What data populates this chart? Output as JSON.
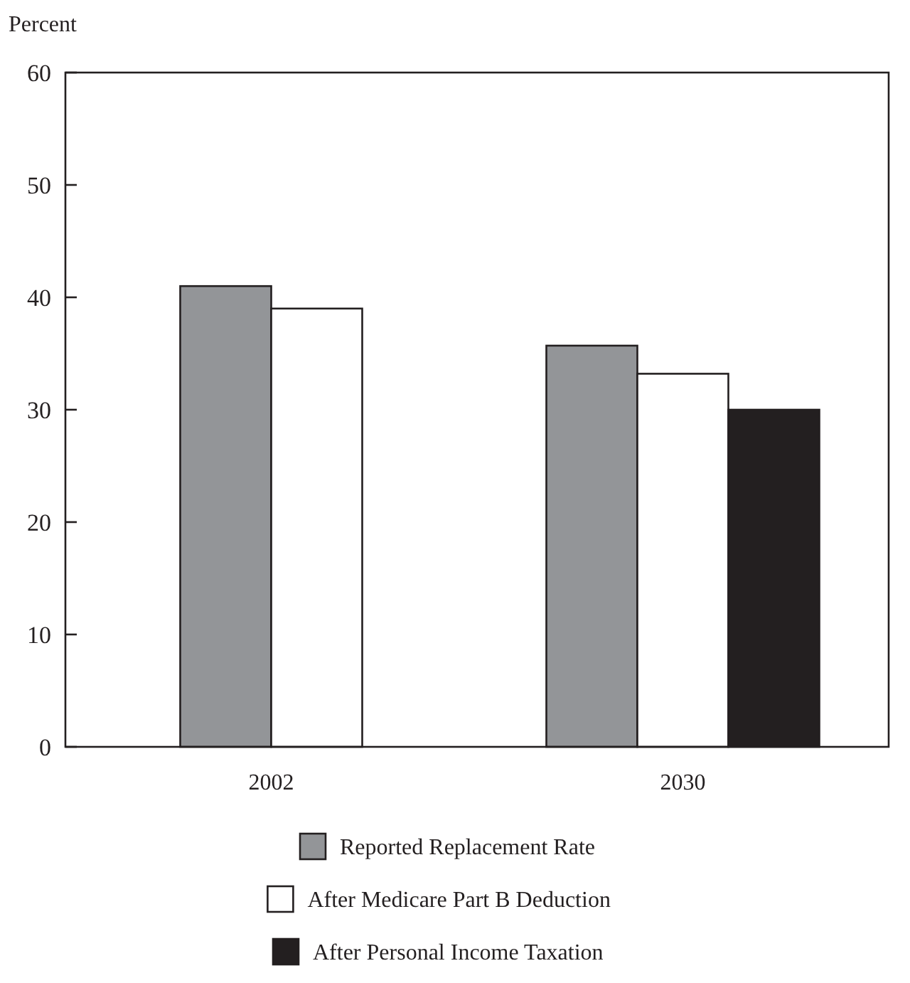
{
  "chart_data": {
    "type": "bar",
    "ylabel": "Percent",
    "categories": [
      "2002",
      "2030"
    ],
    "series": [
      {
        "name": "Reported Replacement Rate",
        "color": "#939598",
        "values": [
          41.0,
          35.7
        ]
      },
      {
        "name": "After Medicare Part B Deduction",
        "color": "#ffffff",
        "values": [
          39.0,
          33.2
        ]
      },
      {
        "name": "After Personal Income Taxation",
        "color": "#231f20",
        "values": [
          null,
          30.0
        ]
      }
    ],
    "ylim": [
      0,
      60
    ],
    "yticks": [
      0,
      10,
      20,
      30,
      40,
      50,
      60
    ],
    "grid": false,
    "legend": "bottom"
  }
}
